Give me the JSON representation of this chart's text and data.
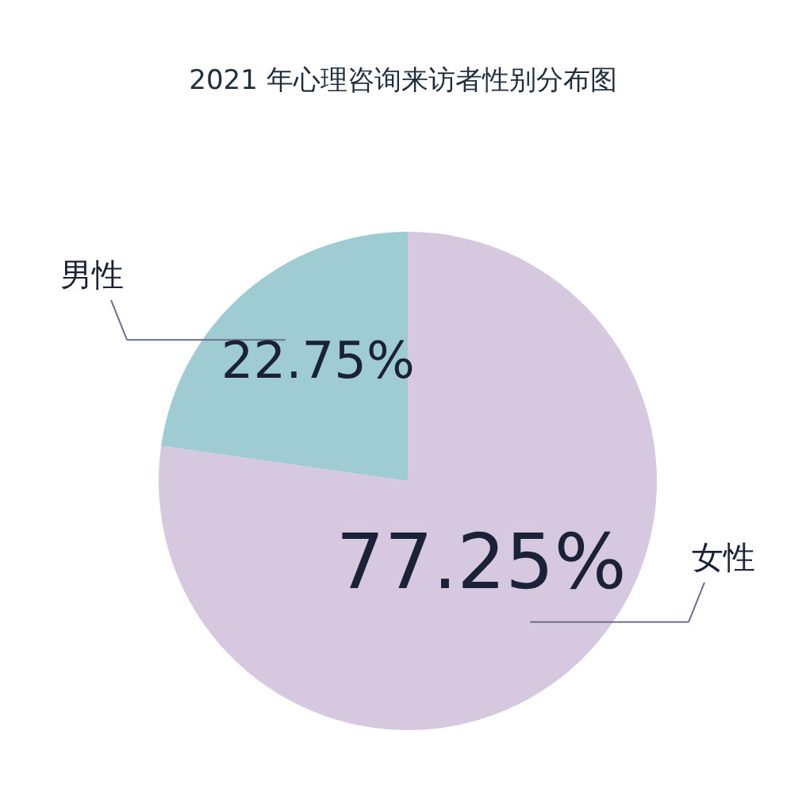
{
  "chart_data": {
    "type": "pie",
    "title": "2021 年心理咨询来访者性别分布图",
    "categories": [
      "女性",
      "男性"
    ],
    "values": [
      77.25,
      22.75
    ],
    "value_labels": [
      "77.25%",
      "22.75%"
    ],
    "colors": [
      "#d6c9df",
      "#9fcbd2"
    ],
    "legend": false
  }
}
